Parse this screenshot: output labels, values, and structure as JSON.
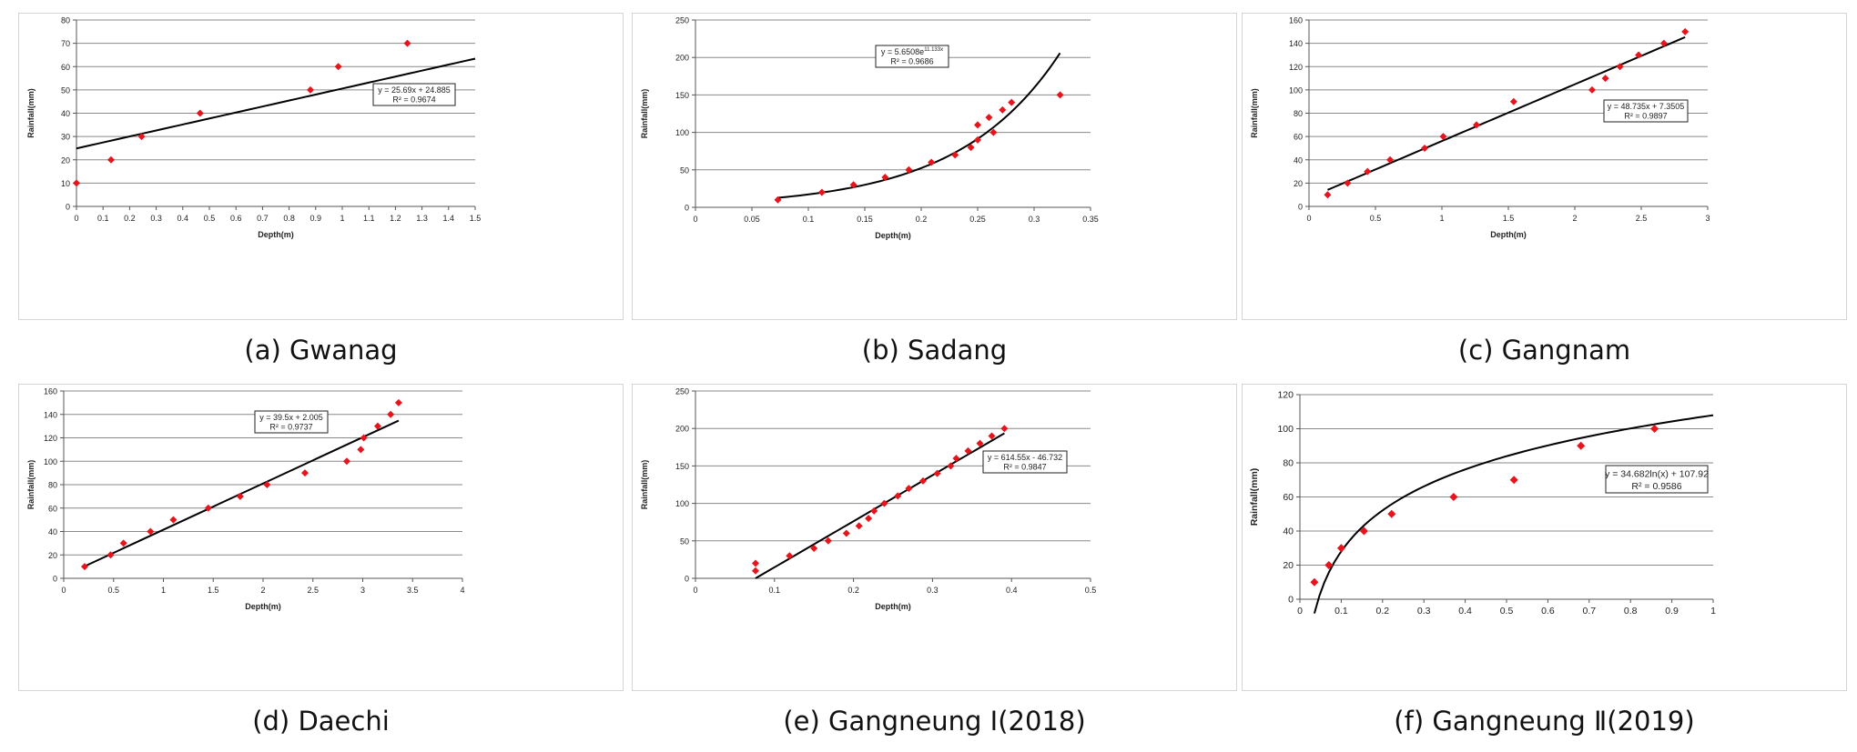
{
  "captions": [
    "(a) Gwanag",
    "(b) Sadang",
    "(c) Gangnam",
    "(d) Daechi",
    "(e) Gangneung Ⅰ(2018)",
    "(f) Gangneung Ⅱ(2019)"
  ],
  "chart_data": [
    {
      "type": "scatter",
      "xlabel": "Depth(m)",
      "ylabel": "Rainfall(mm)",
      "xlim": [
        0,
        1.5
      ],
      "ylim": [
        0,
        80
      ],
      "xticks": [
        "0",
        "0.1",
        "0.2",
        "0.3",
        "0.4",
        "0.5",
        "0.6",
        "0.7",
        "0.8",
        "0.9",
        "1",
        "1.1",
        "1.2",
        "1.3",
        "1.4",
        "1.5"
      ],
      "yticks": [
        "0",
        "10",
        "20",
        "30",
        "40",
        "50",
        "60",
        "70",
        "80"
      ],
      "points": [
        [
          0,
          10
        ],
        [
          0.13,
          20
        ],
        [
          0.245,
          30
        ],
        [
          0.465,
          40
        ],
        [
          0.88,
          50
        ],
        [
          0.985,
          60
        ],
        [
          1.245,
          70
        ]
      ],
      "trendline": {
        "kind": "linear",
        "a": 25.69,
        "b": 24.885,
        "x_range": [
          0,
          1.5
        ]
      },
      "equation": "y = 25.69x + 24.885",
      "r2": "R² = 0.9674",
      "grid": true,
      "marker_color": "#e8141c"
    },
    {
      "type": "scatter",
      "xlabel": "Depth(m)",
      "ylabel": "Rainfall(mm)",
      "xlim": [
        0,
        0.35
      ],
      "ylim": [
        0,
        250
      ],
      "xticks": [
        "0",
        "0.05",
        "0.1",
        "0.15",
        "0.2",
        "0.25",
        "0.3",
        "0.35"
      ],
      "yticks": [
        "0",
        "50",
        "100",
        "150",
        "200",
        "250"
      ],
      "points": [
        [
          0.073,
          10
        ],
        [
          0.112,
          20
        ],
        [
          0.14,
          30
        ],
        [
          0.168,
          40
        ],
        [
          0.189,
          50
        ],
        [
          0.209,
          60
        ],
        [
          0.23,
          70
        ],
        [
          0.244,
          80
        ],
        [
          0.25,
          90
        ],
        [
          0.264,
          100
        ],
        [
          0.25,
          110
        ],
        [
          0.26,
          120
        ],
        [
          0.272,
          130
        ],
        [
          0.28,
          140
        ],
        [
          0.323,
          150
        ]
      ],
      "trendline": {
        "kind": "exponential",
        "a": 5.6508,
        "b": 11.133,
        "x_range": [
          0.073,
          0.323
        ]
      },
      "equation": "y = 5.6508e",
      "equation_exponent": "11.133x",
      "r2": "R² = 0.9686",
      "grid": true,
      "marker_color": "#e8141c"
    },
    {
      "type": "scatter",
      "xlabel": "Depth(m)",
      "ylabel": "Rainfall(mm)",
      "xlim": [
        0,
        3
      ],
      "ylim": [
        0,
        160
      ],
      "xticks": [
        "0",
        "0.5",
        "1",
        "1.5",
        "2",
        "2.5",
        "3"
      ],
      "yticks": [
        "0",
        "20",
        "40",
        "60",
        "80",
        "100",
        "120",
        "140",
        "160"
      ],
      "points": [
        [
          0.14,
          10
        ],
        [
          0.29,
          20
        ],
        [
          0.44,
          30
        ],
        [
          0.61,
          40
        ],
        [
          0.87,
          50
        ],
        [
          1.01,
          60
        ],
        [
          1.26,
          70
        ],
        [
          1.54,
          90
        ],
        [
          2.13,
          100
        ],
        [
          2.23,
          110
        ],
        [
          2.34,
          120
        ],
        [
          2.48,
          130
        ],
        [
          2.67,
          140
        ],
        [
          2.83,
          150
        ]
      ],
      "trendline": {
        "kind": "linear",
        "a": 48.735,
        "b": 7.3505,
        "x_range": [
          0.14,
          2.83
        ]
      },
      "equation": "y = 48.735x + 7.3505",
      "r2": "R² = 0.9897",
      "grid": true,
      "marker_color": "#e8141c"
    },
    {
      "type": "scatter",
      "xlabel": "Depth(m)",
      "ylabel": "Rainfall(mm)",
      "xlim": [
        0,
        4
      ],
      "ylim": [
        0,
        160
      ],
      "xticks": [
        "0",
        "0.5",
        "1",
        "1.5",
        "2",
        "2.5",
        "3",
        "3.5",
        "4"
      ],
      "yticks": [
        "0",
        "20",
        "40",
        "60",
        "80",
        "100",
        "120",
        "140",
        "160"
      ],
      "points": [
        [
          0.21,
          10
        ],
        [
          0.47,
          20
        ],
        [
          0.6,
          30
        ],
        [
          0.87,
          40
        ],
        [
          1.1,
          50
        ],
        [
          1.45,
          60
        ],
        [
          1.77,
          70
        ],
        [
          2.04,
          80
        ],
        [
          2.42,
          90
        ],
        [
          2.84,
          100
        ],
        [
          2.98,
          110
        ],
        [
          3.01,
          120
        ],
        [
          3.15,
          130
        ],
        [
          3.28,
          140
        ],
        [
          3.36,
          150
        ]
      ],
      "trendline": {
        "kind": "linear",
        "a": 39.5,
        "b": 2.005,
        "x_range": [
          0.21,
          3.36
        ]
      },
      "equation": "y = 39.5x + 2.005",
      "r2": "R² = 0.9737",
      "grid": true,
      "marker_color": "#e8141c"
    },
    {
      "type": "scatter",
      "xlabel": "Depth(m)",
      "ylabel": "Rainfall(mm)",
      "xlim": [
        0,
        0.5
      ],
      "ylim": [
        0,
        250
      ],
      "xticks": [
        "0",
        "0.1",
        "0.2",
        "0.3",
        "0.4",
        "0.5"
      ],
      "yticks": [
        "0",
        "50",
        "100",
        "150",
        "200",
        "250"
      ],
      "points": [
        [
          0.076,
          10
        ],
        [
          0.076,
          20
        ],
        [
          0.119,
          30
        ],
        [
          0.15,
          40
        ],
        [
          0.168,
          50
        ],
        [
          0.191,
          60
        ],
        [
          0.207,
          70
        ],
        [
          0.219,
          80
        ],
        [
          0.226,
          90
        ],
        [
          0.239,
          100
        ],
        [
          0.256,
          110
        ],
        [
          0.27,
          120
        ],
        [
          0.288,
          130
        ],
        [
          0.306,
          140
        ],
        [
          0.323,
          150
        ],
        [
          0.33,
          160
        ],
        [
          0.345,
          170
        ],
        [
          0.36,
          180
        ],
        [
          0.375,
          190
        ],
        [
          0.391,
          200
        ]
      ],
      "trendline": {
        "kind": "linear",
        "a": 614.55,
        "b": -46.732,
        "x_range": [
          0.076,
          0.391
        ]
      },
      "equation": "y = 614.55x - 46.732",
      "r2": "R² = 0.9847",
      "grid": true,
      "marker_color": "#e8141c"
    },
    {
      "type": "scatter",
      "xlabel": "",
      "ylabel": "Rainfall(mm)",
      "xlim": [
        0,
        1
      ],
      "ylim": [
        0,
        120
      ],
      "xticks": [
        "0",
        "0.1",
        "0.2",
        "0.3",
        "0.4",
        "0.5",
        "0.6",
        "0.7",
        "0.8",
        "0.9",
        "1"
      ],
      "yticks": [
        "0",
        "20",
        "40",
        "60",
        "80",
        "100",
        "120"
      ],
      "points": [
        [
          0.035,
          10
        ],
        [
          0.07,
          20
        ],
        [
          0.1,
          30
        ],
        [
          0.155,
          40
        ],
        [
          0.222,
          50
        ],
        [
          0.372,
          60
        ],
        [
          0.518,
          70
        ],
        [
          0.68,
          90
        ],
        [
          0.858,
          100
        ]
      ],
      "trendline": {
        "kind": "logarithmic",
        "a": 34.682,
        "b": 107.92,
        "x_range": [
          0.035,
          1
        ]
      },
      "equation": "y = 34.682ln(x) + 107.92",
      "r2": "R² = 0.9586",
      "grid": true,
      "marker_color": "#e8141c"
    }
  ]
}
